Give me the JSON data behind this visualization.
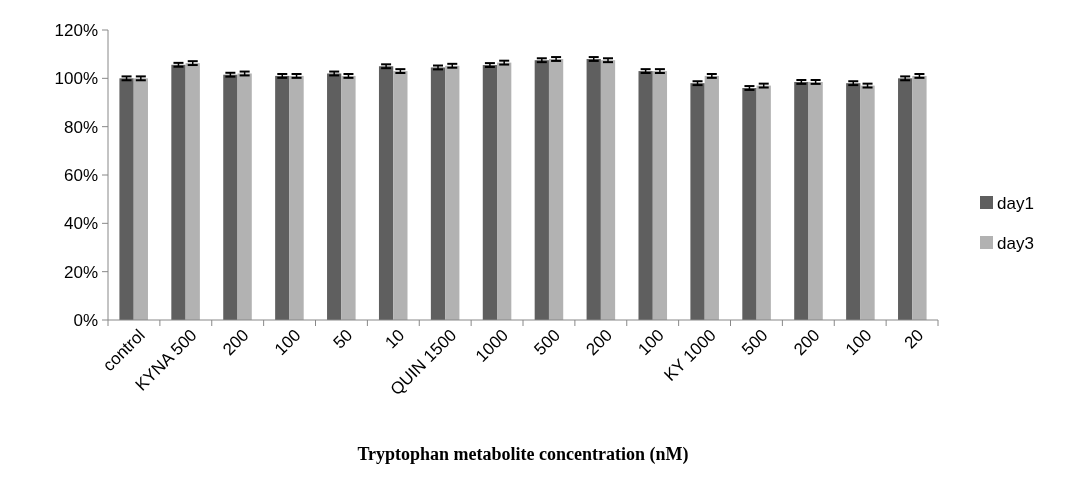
{
  "chart_data": {
    "type": "bar",
    "xlabel": "Tryptophan metabolite concentration (nM)",
    "categories": [
      "control",
      "KYNA 500",
      "200",
      "100",
      "50",
      "10",
      "QUIN 1500",
      "1000",
      "500",
      "200",
      "100",
      "KY 1000",
      "500",
      "200",
      "100",
      "20"
    ],
    "series": [
      {
        "name": "day1",
        "color": "#5f5f5f",
        "values": [
          100,
          105.6,
          101.5,
          101,
          102,
          105,
          104.5,
          105.5,
          107.5,
          108,
          103,
          98,
          96,
          98.5,
          98,
          100
        ],
        "errors": [
          0.8,
          0.8,
          0.8,
          0.8,
          0.8,
          0.8,
          0.8,
          0.8,
          0.8,
          0.8,
          0.8,
          0.8,
          0.8,
          0.8,
          0.8,
          0.8
        ]
      },
      {
        "name": "day3",
        "color": "#b2b2b2",
        "values": [
          100,
          106.3,
          102,
          101,
          101,
          103,
          105.2,
          106.5,
          108,
          107.5,
          103,
          101,
          97,
          98.5,
          97,
          101
        ],
        "errors": [
          0.8,
          0.8,
          0.8,
          0.8,
          0.8,
          0.8,
          0.8,
          0.8,
          0.8,
          0.8,
          0.8,
          0.8,
          0.8,
          0.8,
          0.8,
          0.8
        ]
      }
    ],
    "ylim": [
      0,
      120
    ],
    "yticks": [
      {
        "value": 0,
        "label": "0%"
      },
      {
        "value": 20,
        "label": "20%"
      },
      {
        "value": 40,
        "label": "40%"
      },
      {
        "value": 60,
        "label": "60%"
      },
      {
        "value": 80,
        "label": "80%"
      },
      {
        "value": 100,
        "label": "100%"
      },
      {
        "value": 120,
        "label": "120%"
      }
    ],
    "grid": false,
    "legend": "right"
  }
}
